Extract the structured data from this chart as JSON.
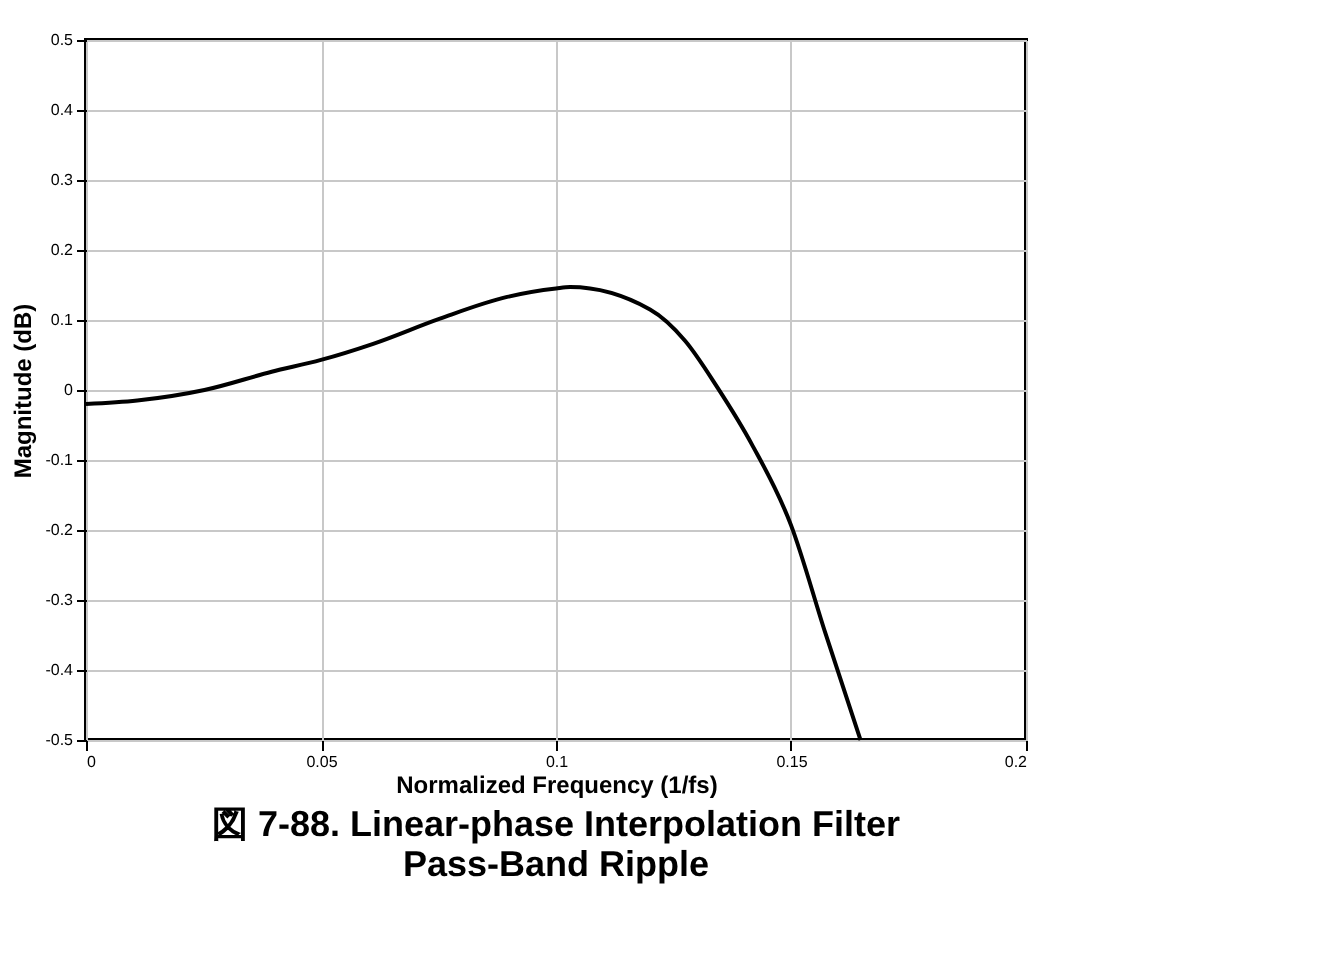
{
  "chart_data": {
    "type": "line",
    "title": "図 7-88. Linear-phase Interpolation Filter Pass-Band Ripple",
    "xlabel": "Normalized Frequency (1/fs)",
    "ylabel": "Magnitude (dB)",
    "x": [
      0,
      0.0109,
      0.0252,
      0.0395,
      0.05,
      0.0611,
      0.0753,
      0.0896,
      0.1,
      0.103,
      0.12,
      0.1275,
      0.1344,
      0.1417,
      0.15,
      0.1573,
      0.1648
    ],
    "series": [
      {
        "color": "#000000",
        "values": [
          -0.02,
          -0.015,
          0.0,
          0.026,
          0.043,
          0.066,
          0.102,
          0.133,
          0.145,
          0.147,
          0.115,
          0.07,
          0.003,
          -0.078,
          -0.193,
          -0.347,
          -0.5
        ]
      }
    ],
    "xlim": [
      0,
      0.2
    ],
    "xticks": [
      0,
      0.05,
      0.1,
      0.15,
      0.2
    ],
    "ylim": [
      -0.5,
      0.5
    ],
    "yticks": [
      -0.5,
      -0.4,
      -0.3,
      -0.2,
      -0.1,
      0,
      0.1,
      0.2,
      0.3,
      0.4,
      0.5
    ],
    "grid": true,
    "marker": "none",
    "line_style": "solid"
  }
}
